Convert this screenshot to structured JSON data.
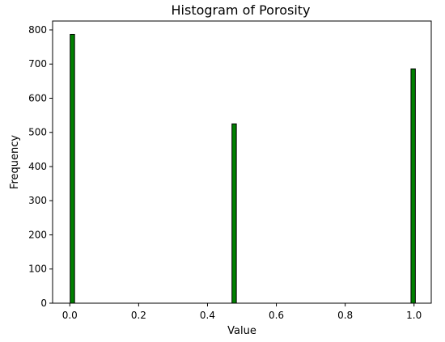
{
  "chart_data": {
    "type": "bar",
    "title": "Histogram of Porosity",
    "xlabel": "Value",
    "ylabel": "Frequency",
    "xlim": [
      -0.05,
      1.05
    ],
    "ylim": [
      0,
      826
    ],
    "xticks": [
      0.0,
      0.2,
      0.4,
      0.6,
      0.8,
      1.0
    ],
    "xtick_labels": [
      "0.0",
      "0.2",
      "0.4",
      "0.6",
      "0.8",
      "1.0"
    ],
    "yticks": [
      0,
      100,
      200,
      300,
      400,
      500,
      600,
      700,
      800
    ],
    "ytick_labels": [
      "0",
      "100",
      "200",
      "300",
      "400",
      "500",
      "600",
      "700",
      "800"
    ],
    "bin_width": 0.0127,
    "bars": [
      {
        "x": 0.0075,
        "value": 787
      },
      {
        "x": 0.4775,
        "value": 525
      },
      {
        "x": 0.9975,
        "value": 686
      }
    ],
    "grid": false,
    "bar_color": "#008000",
    "edge_color": "#000000"
  }
}
